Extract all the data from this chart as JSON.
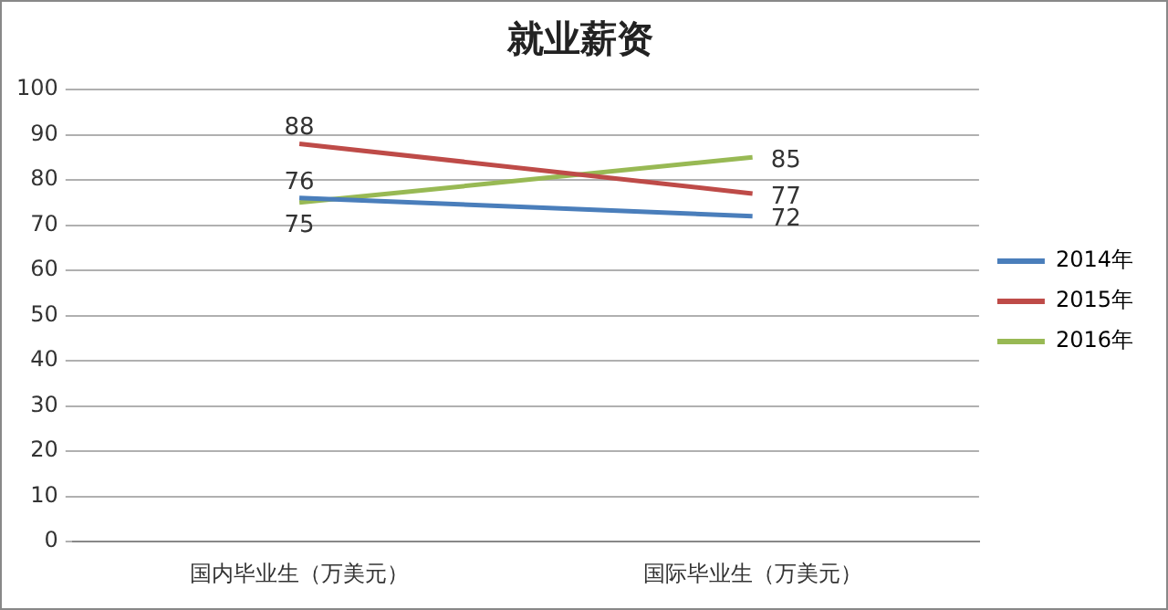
{
  "chart_data": {
    "type": "line",
    "title": "就业薪资",
    "categories": [
      "国内毕业生（万美元）",
      "国际毕业生（万美元）"
    ],
    "series": [
      {
        "name": "2014年",
        "color": "#4a7ebb",
        "values": [
          76,
          72
        ]
      },
      {
        "name": "2015年",
        "color": "#be4b48",
        "values": [
          88,
          77
        ]
      },
      {
        "name": "2016年",
        "color": "#98b954",
        "values": [
          75,
          85
        ]
      }
    ],
    "ylim": [
      0,
      100
    ],
    "yticks": [
      0,
      10,
      20,
      30,
      40,
      50,
      60,
      70,
      80,
      90,
      100
    ],
    "grid": "y",
    "legend": "right",
    "marker": "none",
    "line_style": "solid",
    "data_labels": true
  }
}
